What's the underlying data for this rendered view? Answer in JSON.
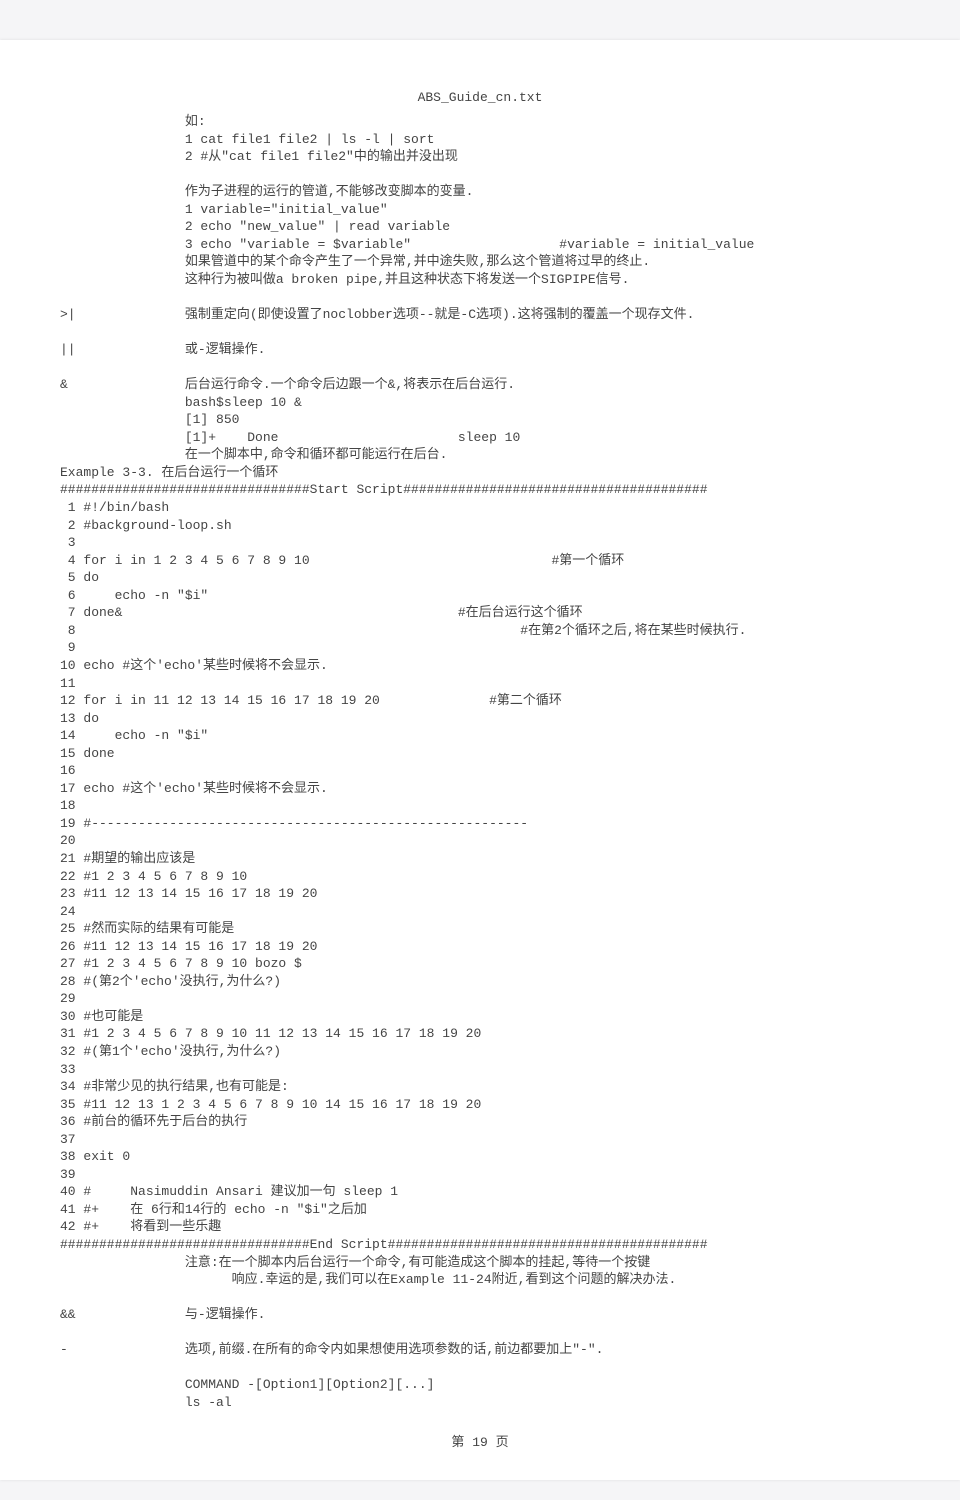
{
  "document": {
    "title": "ABS_Guide_cn.txt",
    "intro_lines": [
      "                如:",
      "                1 cat file1 file2 | ls -l | sort",
      "                2 #从\"cat file1 file2\"中的输出并没出现",
      "",
      "                作为子进程的运行的管道,不能够改变脚本的变量.",
      "                1 variable=\"initial_value\"",
      "                2 echo \"new_value\" | read variable",
      "                3 echo \"variable = $variable\"                   #variable = initial_value",
      "                如果管道中的某个命令产生了一个异常,并中途失败,那么这个管道将过早的终止.",
      "                这种行为被叫做a broken pipe,并且这种状态下将发送一个SIGPIPE信号."
    ],
    "ops": {
      "redirect": {
        "sym": ">|",
        "text": "强制重定向(即使设置了noclobber选项--就是-C选项).这将强制的覆盖一个现存文件."
      },
      "or": {
        "sym": "||",
        "text": "或-逻辑操作."
      },
      "bg": {
        "sym": "&",
        "text": "后台运行命令.一个命令后边跟一个&,将表示在后台运行.",
        "lines": [
          "                bash$sleep 10 &",
          "                [1] 850",
          "                [1]+    Done                       sleep 10",
          "                在一个脚本中,命令和循环都可能运行在后台."
        ]
      }
    },
    "example_title": "Example 3-3. 在后台运行一个循环",
    "start_sep": "################################Start Script#######################################",
    "script_lines": [
      " 1 #!/bin/bash",
      " 2 #background-loop.sh",
      " 3",
      " 4 for i in 1 2 3 4 5 6 7 8 9 10                               #第一个循环",
      " 5 do",
      " 6     echo -n \"$i\"",
      " 7 done&                                           #在后台运行这个循环",
      " 8                                                         #在第2个循环之后,将在某些时候执行.",
      " 9",
      "10 echo #这个'echo'某些时候将不会显示.",
      "11",
      "12 for i in 11 12 13 14 15 16 17 18 19 20              #第二个循环",
      "13 do",
      "14     echo -n \"$i\"",
      "15 done",
      "16",
      "17 echo #这个'echo'某些时候将不会显示.",
      "18",
      "19 #--------------------------------------------------------",
      "20",
      "21 #期望的输出应该是",
      "22 #1 2 3 4 5 6 7 8 9 10",
      "23 #11 12 13 14 15 16 17 18 19 20",
      "24",
      "25 #然而实际的结果有可能是",
      "26 #11 12 13 14 15 16 17 18 19 20",
      "27 #1 2 3 4 5 6 7 8 9 10 bozo $",
      "28 #(第2个'echo'没执行,为什么?)",
      "29",
      "30 #也可能是",
      "31 #1 2 3 4 5 6 7 8 9 10 11 12 13 14 15 16 17 18 19 20",
      "32 #(第1个'echo'没执行,为什么?)",
      "33",
      "34 #非常少见的执行结果,也有可能是:",
      "35 #11 12 13 1 2 3 4 5 6 7 8 9 10 14 15 16 17 18 19 20",
      "36 #前台的循环先于后台的执行",
      "37",
      "38 exit 0",
      "39",
      "40 #     Nasimuddin Ansari 建议加一句 sleep 1",
      "41 #+    在 6行和14行的 echo -n \"$i\"之后加",
      "42 #+    将看到一些乐趣"
    ],
    "end_sep": "################################End Script#########################################",
    "note_lines": [
      "                注意:在一个脚本内后台运行一个命令,有可能造成这个脚本的挂起,等待一个按键",
      "                      响应.幸运的是,我们可以在Example 11-24附近,看到这个问题的解决办法."
    ],
    "ops2": {
      "and": {
        "sym": "&&",
        "text": "与-逻辑操作."
      },
      "dash": {
        "sym": "-",
        "text": "选项,前缀.在所有的命令内如果想使用选项参数的话,前边都要加上\"-\".",
        "lines": [
          "",
          "                COMMAND -[Option1][Option2][...]",
          "                ls -al"
        ]
      }
    },
    "page_number": "第 19 页"
  }
}
